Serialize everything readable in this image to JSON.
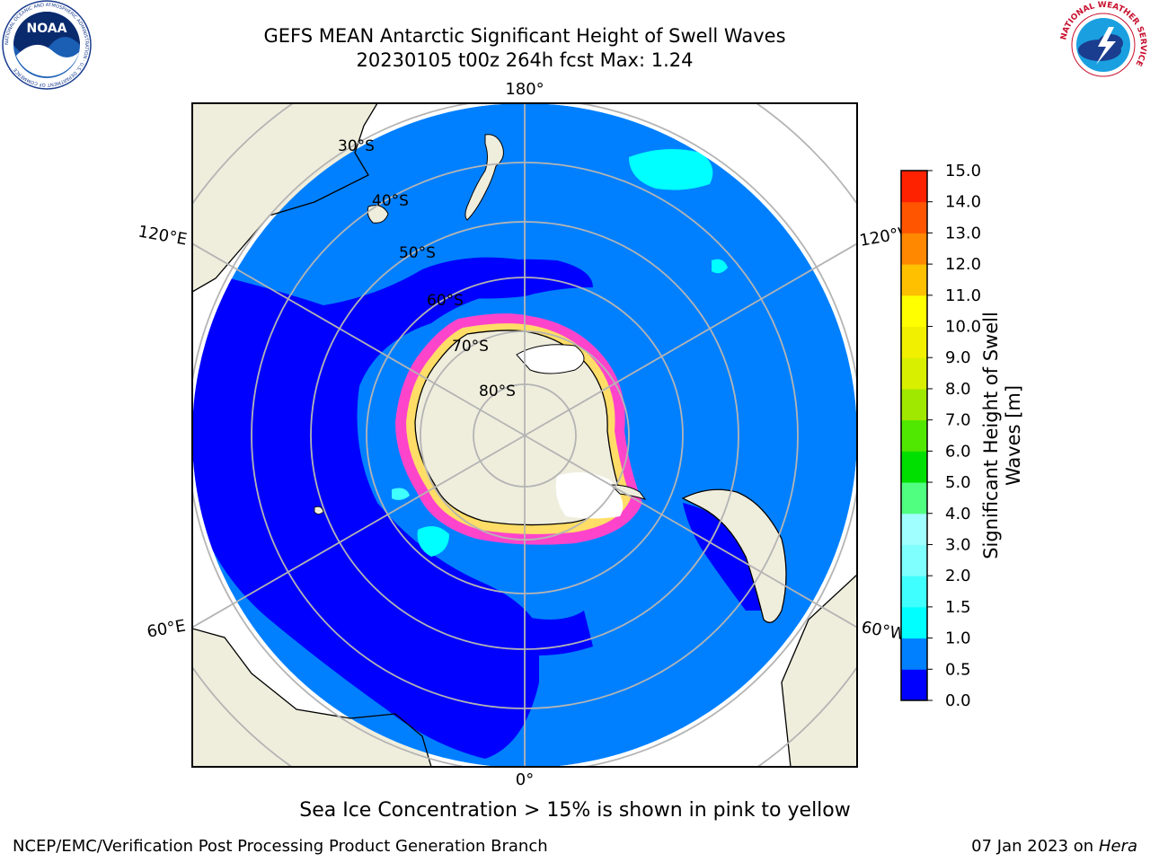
{
  "header": {
    "title_line1": "GEFS MEAN Antarctic Significant Height of Swell Waves",
    "title_line2": "20230105 t00z 264h fcst   Max: 1.24"
  },
  "logos": {
    "noaa": {
      "text": "NOAA",
      "ring_text": "NATIONAL OCEANIC AND ATMOSPHERIC ADMINISTRATION · U.S. DEPARTMENT OF COMMERCE"
    },
    "nws": {
      "ring_text": "NATIONAL WEATHER SERVICE"
    }
  },
  "map": {
    "projection": "south-polar-stereographic",
    "longitude_labels": {
      "top": "180°",
      "bottom": "0°",
      "left_upper": "120°E",
      "left_lower": "60°E",
      "right_upper": "120°W",
      "right_lower": "60°W"
    },
    "latitude_labels": [
      "30°S",
      "40°S",
      "50°S",
      "60°S",
      "70°S",
      "80°S"
    ],
    "colors": {
      "ocean_0_05": "#0000ff",
      "ocean_05_10": "#0080ff",
      "land": "#efeedd",
      "grid": "#b4b4b4",
      "ice_pink": "#ff44cc",
      "ice_yellow": "#ffdd66",
      "swell_cyan": "#00ffff"
    }
  },
  "colorbar": {
    "label": "Significant Height of Swell Waves [m]",
    "label_line1": "Significant Height of Swell",
    "label_line2": "Waves [m]",
    "ticks": [
      "0.0",
      "0.5",
      "1.0",
      "1.5",
      "2.0",
      "3.0",
      "4.0",
      "5.0",
      "6.0",
      "7.0",
      "8.0",
      "9.0",
      "10.0",
      "11.0",
      "12.0",
      "13.0",
      "14.0",
      "15.0"
    ],
    "colors": [
      "#0000ff",
      "#0080ff",
      "#00ffff",
      "#40ffff",
      "#80ffff",
      "#a0ffff",
      "#50ff80",
      "#00e000",
      "#50e800",
      "#a0e800",
      "#d8f000",
      "#f0f000",
      "#ffff00",
      "#ffc000",
      "#ff8800",
      "#ff5500",
      "#ff2200",
      "#ff0000"
    ]
  },
  "caption": "Sea Ice Concentration > 15% is shown in pink to yellow",
  "footer": {
    "left": "NCEP/EMC/Verification Post Processing Product Generation Branch",
    "right_date": "07 Jan 2023 on",
    "right_host": "Hera"
  }
}
